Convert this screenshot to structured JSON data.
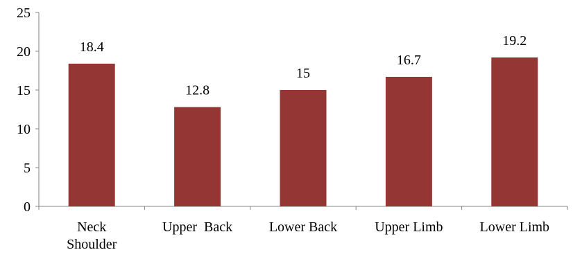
{
  "chart_data": {
    "type": "bar",
    "categories": [
      [
        "Neck",
        "Shoulder"
      ],
      [
        "Upper  Back"
      ],
      [
        "Lower Back"
      ],
      [
        "Upper Limb"
      ],
      [
        "Lower Limb"
      ]
    ],
    "values": [
      18.4,
      12.8,
      15,
      16.7,
      19.2
    ],
    "data_labels": [
      "18.4",
      "12.8",
      "15",
      "16.7",
      "19.2"
    ],
    "yticks": [
      "0",
      "5",
      "10",
      "15",
      "20",
      "25"
    ],
    "ylim": [
      0,
      25
    ],
    "grid": false,
    "legend": "none",
    "bar_color": "#943634"
  }
}
